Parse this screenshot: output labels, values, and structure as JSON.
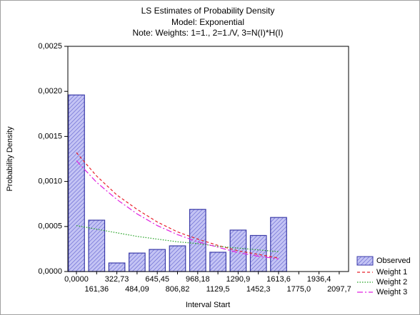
{
  "chart_data": {
    "type": "bar",
    "title": "LS Estimates of Probability Density",
    "subtitle": "Model: Exponential",
    "note": "Note: Weights: 1=1., 2=1./V, 3=N(I)*H(I)",
    "x_label": "Interval Start",
    "y_label": "Probability Density",
    "categories": [
      "0,0000",
      "161,36",
      "322,73",
      "484,09",
      "645,45",
      "806,82",
      "968,18",
      "1129,5",
      "1290,9",
      "1452,3",
      "1613,6",
      "1775,0",
      "1936,4",
      "2097,7"
    ],
    "series": [
      {
        "name": "Observed",
        "kind": "bar",
        "color": "#3a3aa8",
        "fill": "#b8b8f0",
        "values": [
          0.00196,
          0.00057,
          9.5e-05,
          0.000205,
          0.000245,
          0.000285,
          0.00069,
          0.000214,
          0.00046,
          0.0004,
          0.0006,
          null,
          null,
          null
        ]
      },
      {
        "name": "Weight 1",
        "kind": "line",
        "dash": "4,3",
        "color": "#e8202a",
        "values": [
          0.00132,
          0.00106,
          0.00085,
          0.00069,
          0.00055,
          0.00044,
          0.00036,
          0.00029,
          0.00023,
          0.00019,
          0.00015,
          null,
          null,
          null
        ]
      },
      {
        "name": "Weight 2",
        "kind": "line",
        "dash": "1.5,2",
        "color": "#20a020",
        "values": [
          0.00051,
          0.00047,
          0.00043,
          0.00039,
          0.00036,
          0.00033,
          0.00031,
          0.00028,
          0.00026,
          0.00024,
          0.00022,
          null,
          null,
          null
        ]
      },
      {
        "name": "Weight 3",
        "kind": "line",
        "dash": "8,3,2,3",
        "color": "#e020e0",
        "values": [
          0.00123,
          0.00099,
          0.0008,
          0.00064,
          0.00051,
          0.00041,
          0.00033,
          0.00027,
          0.00021,
          0.00017,
          0.00014,
          null,
          null,
          null
        ]
      }
    ],
    "ylim": [
      0,
      0.0025
    ],
    "yticks": [
      {
        "value": 0,
        "label": "0,0000"
      },
      {
        "value": 0.0005,
        "label": "0,0005"
      },
      {
        "value": 0.001,
        "label": "0,0010"
      },
      {
        "value": 0.0015,
        "label": "0,0015"
      },
      {
        "value": 0.002,
        "label": "0,0020"
      },
      {
        "value": 0.0025,
        "label": "0,0025"
      }
    ],
    "legend": "bottom-right"
  }
}
